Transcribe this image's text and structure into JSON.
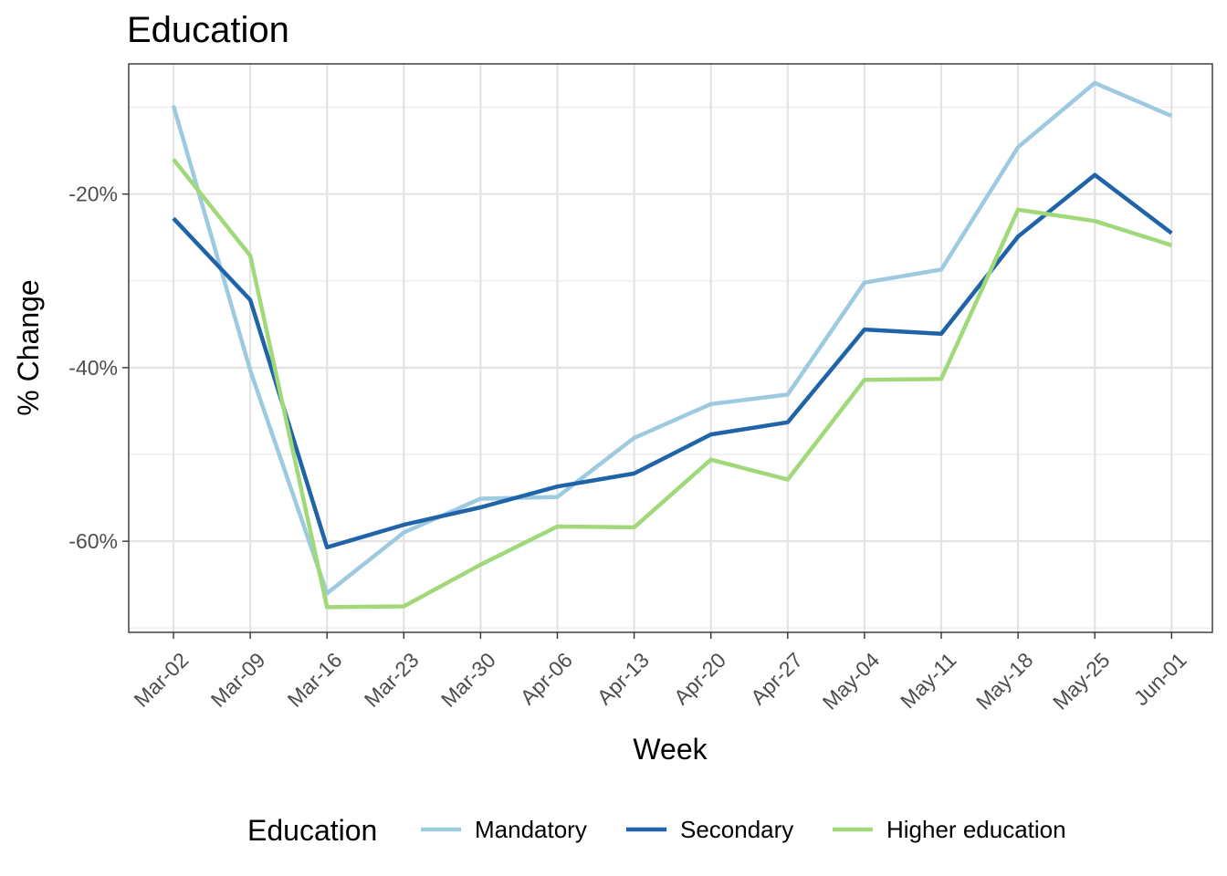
{
  "chart_data": {
    "type": "line",
    "title": "Education",
    "xlabel": "Week",
    "ylabel": "% Change",
    "categories": [
      "Mar-02",
      "Mar-09",
      "Mar-16",
      "Mar-23",
      "Mar-30",
      "Apr-06",
      "Apr-13",
      "Apr-20",
      "Apr-27",
      "May-04",
      "May-11",
      "May-18",
      "May-25",
      "Jun-01"
    ],
    "ylim": [
      -70.5,
      -5
    ],
    "y_ticks": [
      -20,
      -40,
      -60
    ],
    "y_tick_labels": [
      "-20%",
      "-40%",
      "-60%"
    ],
    "grid": true,
    "legend": {
      "title": "Education",
      "position": "bottom"
    },
    "series": [
      {
        "name": "Mandatory",
        "color": "#9ecae1",
        "values": [
          -9.8,
          -40.3,
          -66.0,
          -59.0,
          -55.1,
          -54.9,
          -48.1,
          -44.2,
          -43.1,
          -30.2,
          -28.7,
          -14.6,
          -7.2,
          -11.0
        ]
      },
      {
        "name": "Secondary",
        "color": "#1f63a8",
        "values": [
          -22.8,
          -32.2,
          -60.7,
          -58.1,
          -56.1,
          -53.7,
          -52.2,
          -47.7,
          -46.3,
          -35.6,
          -36.1,
          -24.9,
          -17.8,
          -24.5
        ]
      },
      {
        "name": "Higher education",
        "color": "#a1d97a",
        "values": [
          -16.0,
          -27.1,
          -67.6,
          -67.5,
          -62.7,
          -58.3,
          -58.4,
          -50.6,
          -52.9,
          -41.4,
          -41.3,
          -21.8,
          -23.1,
          -25.9
        ]
      }
    ]
  }
}
